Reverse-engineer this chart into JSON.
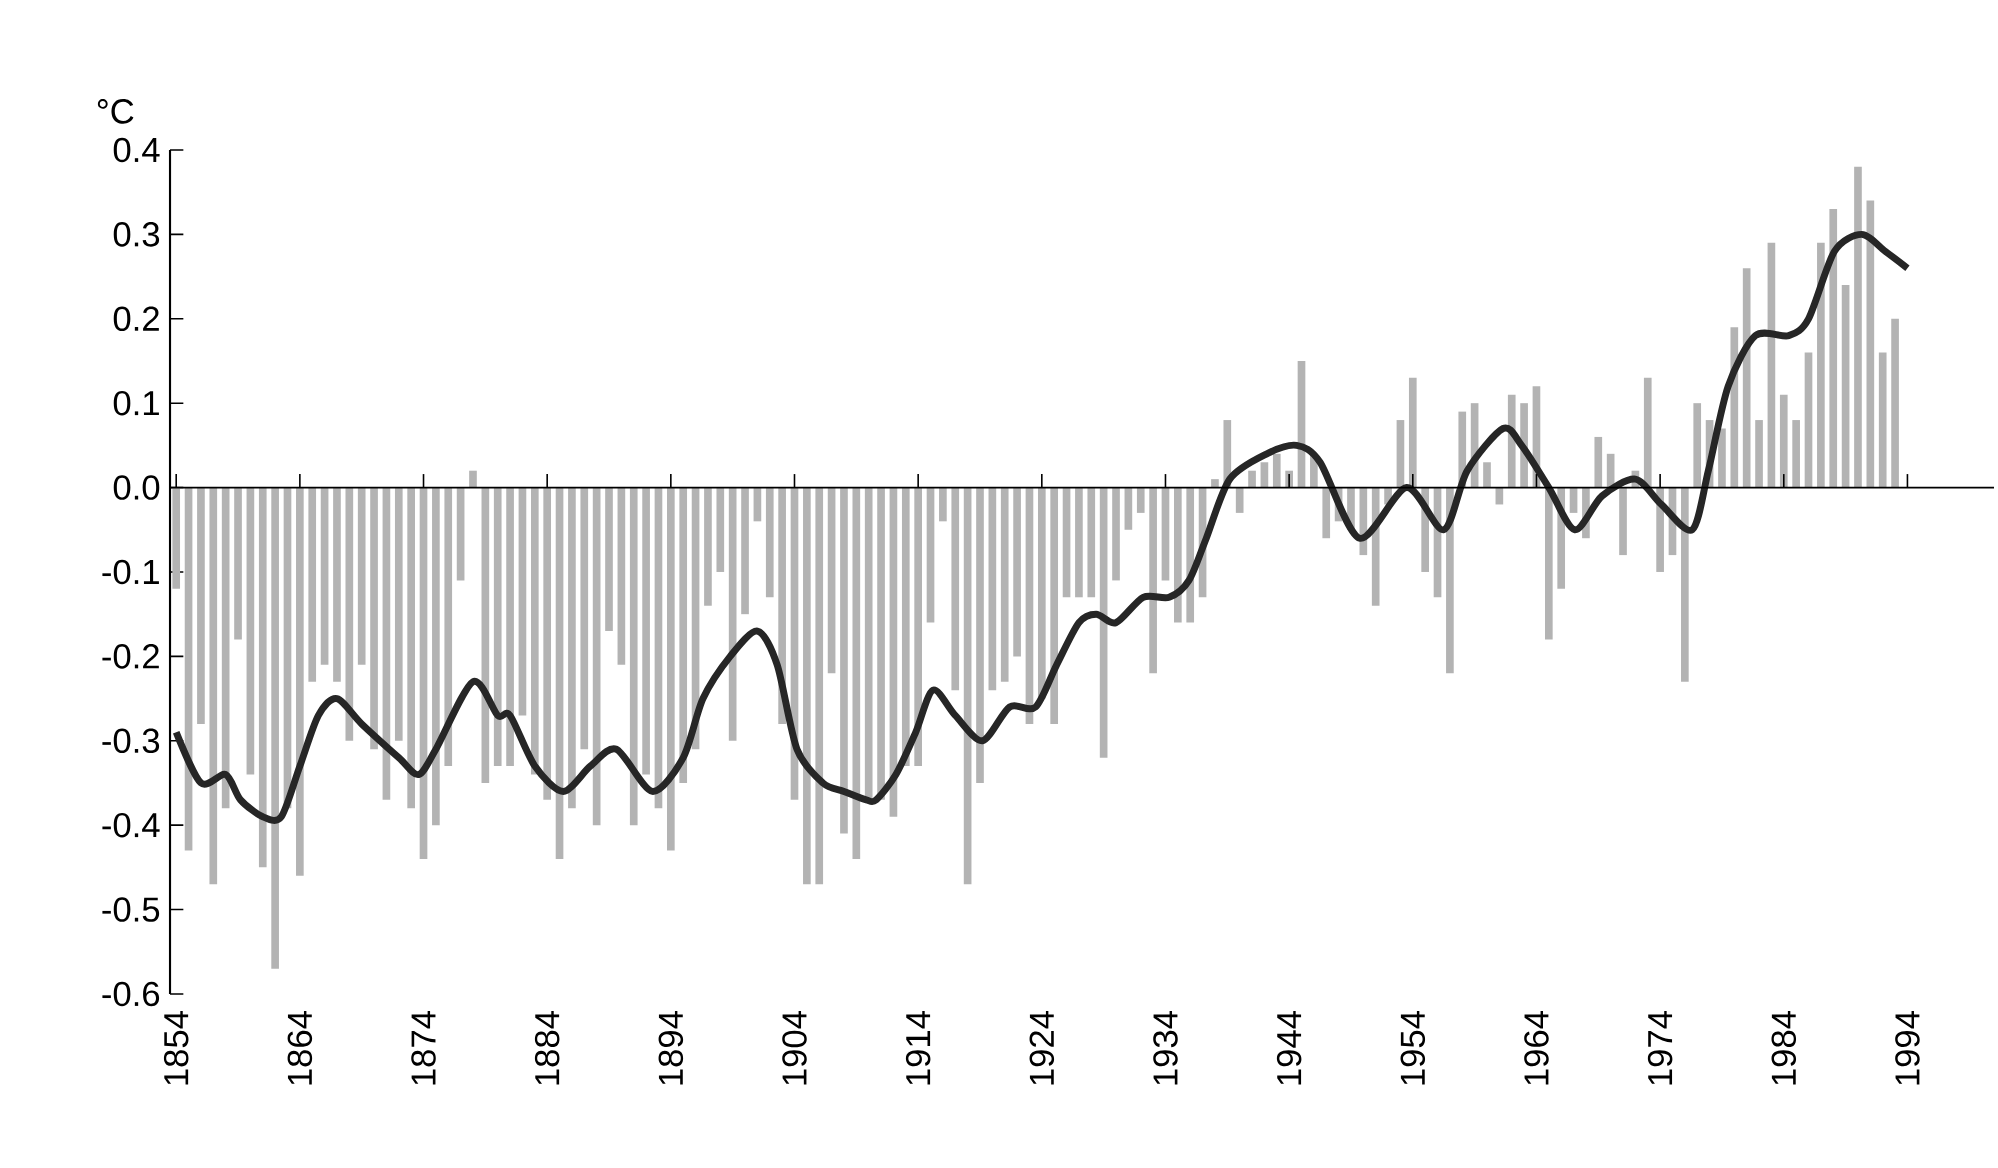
{
  "chart_data": {
    "type": "bar",
    "ylabel": "°C",
    "x": [
      1854,
      1855,
      1856,
      1857,
      1858,
      1859,
      1860,
      1861,
      1862,
      1863,
      1864,
      1865,
      1866,
      1867,
      1868,
      1869,
      1870,
      1871,
      1872,
      1873,
      1874,
      1875,
      1876,
      1877,
      1878,
      1879,
      1880,
      1881,
      1882,
      1883,
      1884,
      1885,
      1886,
      1887,
      1888,
      1889,
      1890,
      1891,
      1892,
      1893,
      1894,
      1895,
      1896,
      1897,
      1898,
      1899,
      1900,
      1901,
      1902,
      1903,
      1904,
      1905,
      1906,
      1907,
      1908,
      1909,
      1910,
      1911,
      1912,
      1913,
      1914,
      1915,
      1916,
      1917,
      1918,
      1919,
      1920,
      1921,
      1922,
      1923,
      1924,
      1925,
      1926,
      1927,
      1928,
      1929,
      1930,
      1931,
      1932,
      1933,
      1934,
      1935,
      1936,
      1937,
      1938,
      1939,
      1940,
      1941,
      1942,
      1943,
      1944,
      1945,
      1946,
      1947,
      1948,
      1949,
      1950,
      1951,
      1952,
      1953,
      1954,
      1955,
      1956,
      1957,
      1958,
      1959,
      1960,
      1961,
      1962,
      1963,
      1964,
      1965,
      1966,
      1967,
      1968,
      1969,
      1970,
      1971,
      1972,
      1973,
      1974,
      1975,
      1976,
      1977,
      1978,
      1979,
      1980,
      1981,
      1982,
      1983,
      1984,
      1985,
      1986,
      1987,
      1988,
      1989,
      1990,
      1991,
      1992,
      1993
    ],
    "series": [
      {
        "color": "#b3b3b3",
        "values": [
          -0.12,
          -0.43,
          -0.28,
          -0.47,
          -0.38,
          -0.18,
          -0.34,
          -0.45,
          -0.57,
          -0.38,
          -0.46,
          -0.23,
          -0.21,
          -0.23,
          -0.3,
          -0.21,
          -0.31,
          -0.37,
          -0.3,
          -0.38,
          -0.44,
          -0.4,
          -0.33,
          -0.11,
          0.02,
          -0.35,
          -0.33,
          -0.33,
          -0.27,
          -0.34,
          -0.37,
          -0.44,
          -0.38,
          -0.31,
          -0.4,
          -0.17,
          -0.21,
          -0.4,
          -0.34,
          -0.38,
          -0.43,
          -0.35,
          -0.31,
          -0.14,
          -0.1,
          -0.3,
          -0.15,
          -0.04,
          -0.13,
          -0.28,
          -0.37,
          -0.47,
          -0.47,
          -0.22,
          -0.41,
          -0.44,
          -0.37,
          -0.37,
          -0.39,
          -0.33,
          -0.33,
          -0.16,
          -0.04,
          -0.24,
          -0.47,
          -0.35,
          -0.24,
          -0.23,
          -0.2,
          -0.28,
          -0.25,
          -0.28,
          -0.13,
          -0.13,
          -0.13,
          -0.32,
          -0.11,
          -0.05,
          -0.03,
          -0.22,
          -0.11,
          -0.16,
          -0.16,
          -0.13,
          0.01,
          0.08,
          -0.03,
          0.02,
          0.03,
          0.04,
          0.02,
          0.15,
          0.04,
          -0.06,
          -0.04,
          -0.05,
          -0.08,
          -0.14,
          -0.02,
          0.08,
          0.13,
          -0.1,
          -0.13,
          -0.22,
          0.09,
          0.1,
          0.03,
          -0.02,
          0.11,
          0.1,
          0.12,
          -0.18,
          -0.12,
          -0.03,
          -0.06,
          0.06,
          0.04,
          -0.08,
          0.02,
          0.13,
          -0.1,
          -0.08,
          -0.23,
          0.1,
          0.08,
          0.07,
          0.19,
          0.26,
          0.08,
          0.29,
          0.11,
          0.08,
          0.16,
          0.29,
          0.33,
          0.24,
          0.38,
          0.34,
          0.16,
          0.2
        ]
      },
      {
        "type": "line",
        "color": "#262626",
        "marker": "none",
        "x": [
          1854,
          1856,
          1858,
          1859.2,
          1861,
          1862.5,
          1864,
          1865.5,
          1867,
          1869,
          1872,
          1873.6,
          1875,
          1878,
          1880,
          1881,
          1883,
          1885.3,
          1887.5,
          1889.6,
          1892.5,
          1895,
          1896.6,
          1898.8,
          1901,
          1902.6,
          1904.2,
          1906.3,
          1908,
          1909.8,
          1910.6,
          1912.2,
          1913.8,
          1915.2,
          1917,
          1919.2,
          1921.4,
          1923.5,
          1925.2,
          1927,
          1928.4,
          1930,
          1932.2,
          1934.3,
          1935.9,
          1937.3,
          1939.2,
          1942.2,
          1944.6,
          1946.5,
          1949.7,
          1953.5,
          1956.5,
          1958.4,
          1961.3,
          1962.8,
          1965,
          1967.1,
          1969.3,
          1972,
          1974.1,
          1976.6,
          1977.9,
          1979.5,
          1981.7,
          1984.4,
          1986,
          1988.1,
          1990.3,
          1992.2,
          1994
        ],
        "values": [
          -0.29,
          -0.35,
          -0.34,
          -0.37,
          -0.39,
          -0.39,
          -0.33,
          -0.27,
          -0.25,
          -0.28,
          -0.32,
          -0.34,
          -0.31,
          -0.23,
          -0.27,
          -0.27,
          -0.33,
          -0.36,
          -0.33,
          -0.31,
          -0.36,
          -0.32,
          -0.25,
          -0.2,
          -0.17,
          -0.21,
          -0.31,
          -0.35,
          -0.36,
          -0.37,
          -0.37,
          -0.34,
          -0.29,
          -0.24,
          -0.27,
          -0.3,
          -0.26,
          -0.26,
          -0.21,
          -0.16,
          -0.15,
          -0.16,
          -0.13,
          -0.13,
          -0.11,
          -0.06,
          0.01,
          0.04,
          0.05,
          0.03,
          -0.06,
          0.0,
          -0.05,
          0.02,
          0.07,
          0.05,
          0.0,
          -0.05,
          -0.01,
          0.01,
          -0.02,
          -0.05,
          0.02,
          0.12,
          0.18,
          0.18,
          0.2,
          0.28,
          0.3,
          0.28,
          0.26
        ]
      }
    ],
    "xlim": [
      1853.5,
      2001
    ],
    "ylim": [
      -0.6,
      0.4
    ],
    "xticks": [
      1854,
      1864,
      1874,
      1884,
      1894,
      1904,
      1914,
      1924,
      1934,
      1944,
      1954,
      1964,
      1974,
      1984,
      1994
    ],
    "yticks": [
      -0.6,
      -0.5,
      -0.4,
      -0.3,
      -0.2,
      -0.1,
      {
        "value": 0,
        "label": "0.0"
      },
      0.1,
      0.2,
      0.3,
      0.4
    ],
    "ref_lines": [
      {
        "axis": "y",
        "value": 0,
        "color": "#000000"
      }
    ]
  }
}
